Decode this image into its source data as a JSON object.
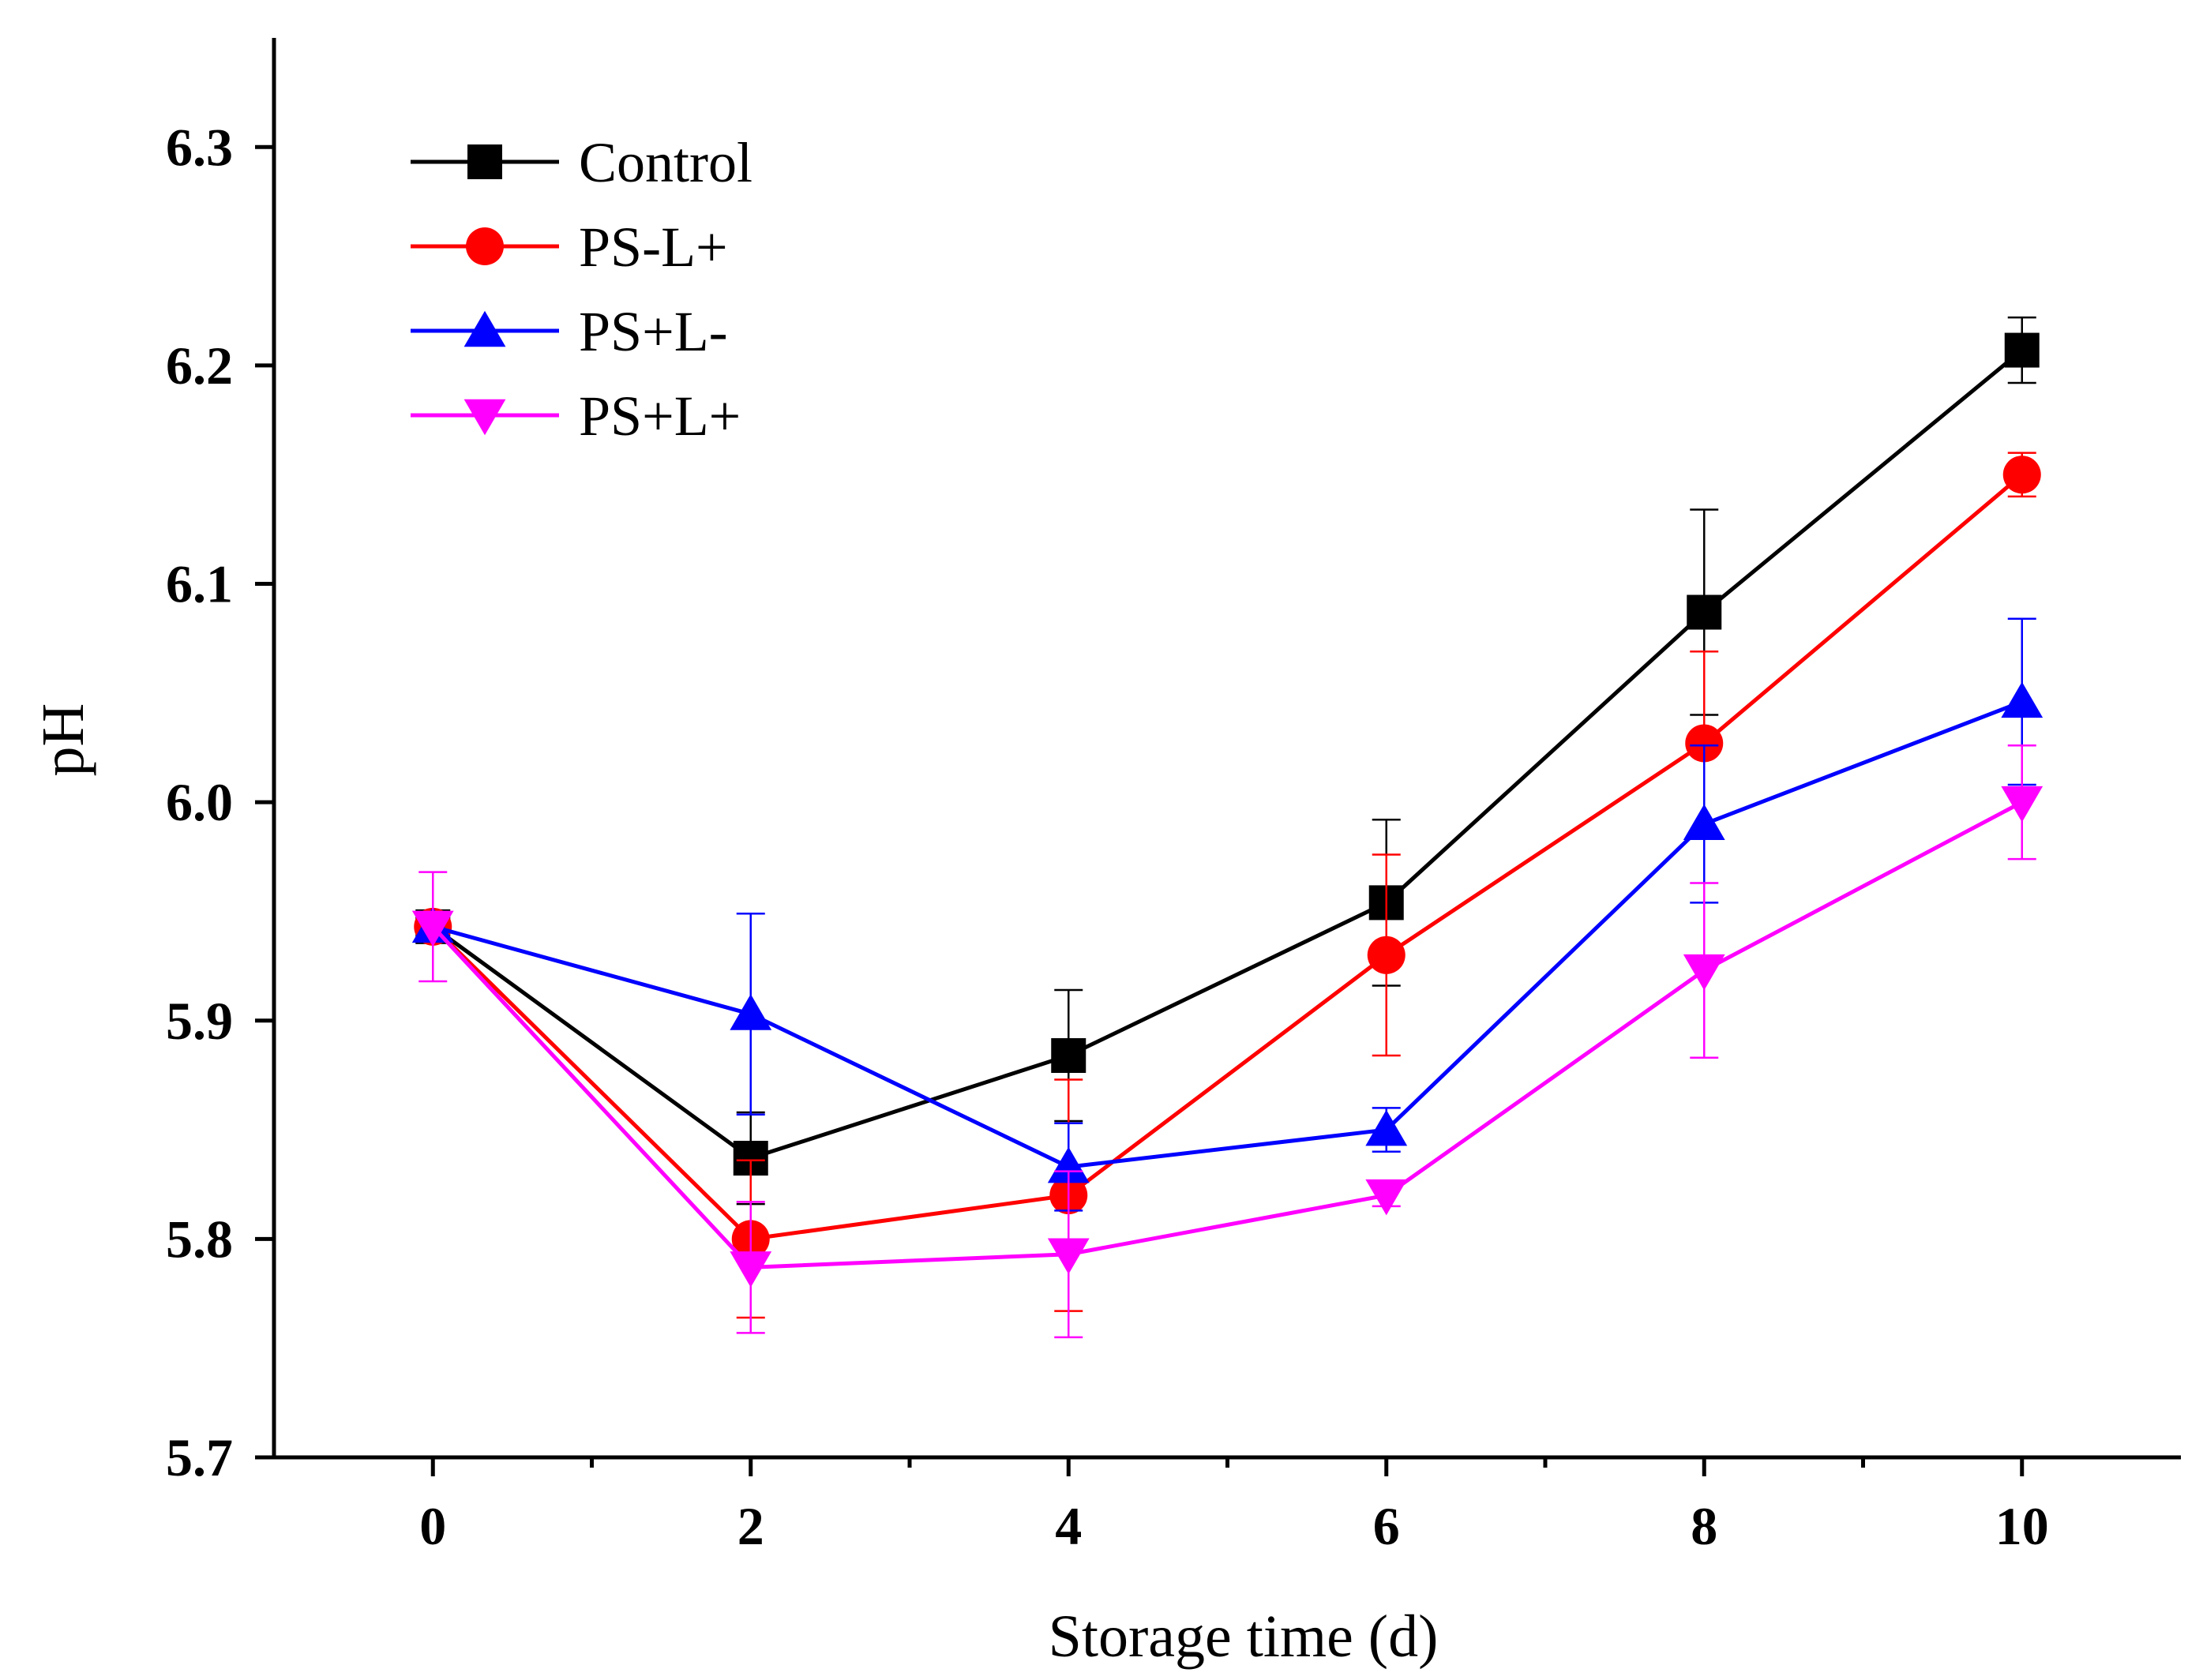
{
  "chart_data": {
    "type": "line",
    "xlabel": "Storage time (d)",
    "ylabel": "pH",
    "x": [
      0,
      2,
      4,
      6,
      8,
      10
    ],
    "xlim": [
      -1,
      11
    ],
    "ylim": [
      5.7,
      6.35
    ],
    "xticks": [
      "0",
      "2",
      "4",
      "6",
      "8",
      "10"
    ],
    "yticks": [
      "5.7",
      "5.8",
      "5.9",
      "6.0",
      "6.1",
      "6.2",
      "6.3"
    ],
    "legend_position": "top-left",
    "series": [
      {
        "name": "Control",
        "color": "#000000",
        "marker": "square",
        "values": [
          5.943,
          5.837,
          5.884,
          5.954,
          6.087,
          6.207
        ],
        "errors": [
          0.005,
          0.021,
          0.03,
          0.038,
          0.047,
          0.015
        ]
      },
      {
        "name": "PS-L+",
        "color": "#ff0000",
        "marker": "circle",
        "values": [
          5.943,
          5.8,
          5.82,
          5.93,
          6.027,
          6.15
        ],
        "errors": [
          0.005,
          0.036,
          0.053,
          0.046,
          0.042,
          0.01
        ]
      },
      {
        "name": "PS+L-",
        "color": "#0000ff",
        "marker": "triangle-up",
        "values": [
          5.943,
          5.903,
          5.833,
          5.85,
          5.99,
          6.046
        ],
        "errors": [
          0.005,
          0.046,
          0.02,
          0.01,
          0.036,
          0.038
        ]
      },
      {
        "name": "PS+L+",
        "color": "#ff00ff",
        "marker": "triangle-down",
        "values": [
          5.943,
          5.787,
          5.793,
          5.82,
          5.923,
          6.0
        ],
        "errors": [
          0.025,
          0.03,
          0.038,
          0.005,
          0.04,
          0.026
        ]
      }
    ]
  }
}
